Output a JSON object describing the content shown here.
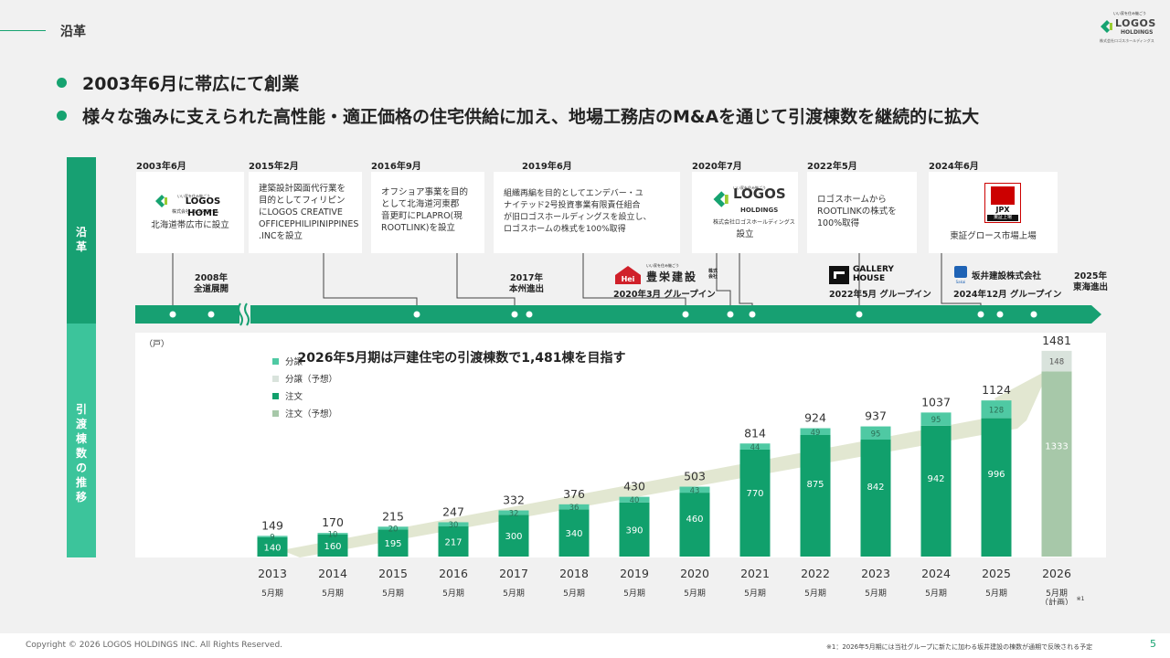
{
  "header": {
    "title": "沿革"
  },
  "logo": {
    "tagline": "いい家を住み継ごう",
    "name": "LOGOS",
    "sub": "HOLDINGS",
    "jp": "株式会社ロゴスホールディングス"
  },
  "bullets": [
    "2003年6月に帯広にて創業",
    "様々な強みに支えられた高性能・適正価格の住宅供給に加え、地場工務店のM&Aを通じて引渡棟数を継続的に拡大"
  ],
  "sidebar": {
    "history": "沿革",
    "deliveries": "引渡棟数の推移"
  },
  "timeline": {
    "events": [
      {
        "date": "2003年6月",
        "lines": [
          "北海道帯広市に設立"
        ],
        "logo_tag": "いい家を住み継ごう",
        "logo_name": "LOGOS HOME",
        "logo_sub": "株式会社 ロゴスホーム"
      },
      {
        "date": "2015年2月",
        "lines": [
          "建築設計図面代行業を",
          "目的としてフィリピン",
          "にLOGOS CREATIVE",
          "OFFICEPHILIPINIPPINES",
          ".INCを設立"
        ]
      },
      {
        "date": "2016年9月",
        "lines": [
          "オフショア事業を目的",
          "として北海道河東郡",
          "音更町にPLAPRO(現",
          "ROOTLINK)を設立"
        ]
      },
      {
        "date": "2019年6月",
        "lines": [
          "組織再編を目的としてエンデバー・ユ",
          "ナイテッド2号投資事業有限責任組合",
          "が旧ロゴスホールディングスを設立し、",
          "ロゴスホームの株式を100%取得"
        ]
      },
      {
        "date": "2020年7月",
        "lines": [
          "設立"
        ],
        "logo_tag": "いい家を住み継ごう",
        "logo_name": "LOGOS",
        "logo_sub": "HOLDINGS",
        "logo_jp": "株式会社ロゴスホールディングス"
      },
      {
        "date": "2022年5月",
        "lines": [
          "ロゴスホームから",
          "ROOTLINKの株式を",
          "100%取得"
        ]
      },
      {
        "date": "2024年6月",
        "lines": [
          "東証グロース市場上場"
        ],
        "logo_name": "JPX",
        "logo_sub": "東証上場"
      }
    ],
    "milestones": [
      {
        "lines": [
          "2008年",
          "全道展開"
        ]
      },
      {
        "lines": [
          "2017年",
          "本州進出"
        ]
      },
      {
        "lines": [
          "2025年",
          "東海進出"
        ]
      }
    ],
    "group_ins": [
      {
        "label": "2020年3月 グループイン",
        "logo_tag": "いい家を住み継ごう",
        "logo_name": "豊栄建設",
        "logo_suffix": "株式会社",
        "logo_mark": "Hei"
      },
      {
        "label": "2022年5月 グループイン",
        "logo_name": "GALLERY HOUSE"
      },
      {
        "label": "2024年12月 グループイン",
        "logo_name": "坂井建設株式会社",
        "logo_mark": "Sakai"
      }
    ]
  },
  "chart_data": {
    "type": "bar",
    "title": "2026年5月期は戸建住宅の引渡棟数で1,481棟を目指す",
    "unit_label": "（戸）",
    "legend": [
      "分譲",
      "分譲（予想）",
      "注文",
      "注文（予想）"
    ],
    "colors": {
      "bunjo": "#4fc9a3",
      "bunjo_forecast": "#d9e3dc",
      "chumon": "#11a06c",
      "chumon_forecast": "#a7c8a9",
      "arrow": "#dfe4cc"
    },
    "categories": [
      "2013",
      "2014",
      "2015",
      "2016",
      "2017",
      "2018",
      "2019",
      "2020",
      "2021",
      "2022",
      "2023",
      "2024",
      "2025",
      "2026"
    ],
    "period_labels": [
      "5月期",
      "5月期",
      "5月期",
      "5月期",
      "5月期",
      "5月期",
      "5月期",
      "5月期",
      "5月期",
      "5月期",
      "5月期",
      "5月期",
      "5月期",
      "5月期"
    ],
    "plan_label": "（計画）",
    "plan_note": "※1",
    "series": [
      {
        "name": "注文",
        "values": [
          140,
          160,
          195,
          217,
          300,
          340,
          390,
          460,
          770,
          875,
          842,
          942,
          996,
          1333
        ]
      },
      {
        "name": "分譲",
        "values": [
          9,
          10,
          20,
          30,
          32,
          36,
          40,
          43,
          44,
          49,
          95,
          95,
          128,
          148
        ]
      }
    ],
    "totals": [
      149,
      170,
      215,
      247,
      332,
      376,
      430,
      503,
      814,
      924,
      937,
      1037,
      1124,
      1481
    ],
    "forecast_index": 13,
    "ylim": [
      0,
      1500
    ]
  },
  "footer": {
    "copyright": "Copyright © 2026 LOGOS HOLDINGS INC. All Rights Reserved.",
    "note": "※1：2026年5月期には当社グループに新たに加わる坂井建設の棟数が通期で反映される予定",
    "page": "5"
  }
}
